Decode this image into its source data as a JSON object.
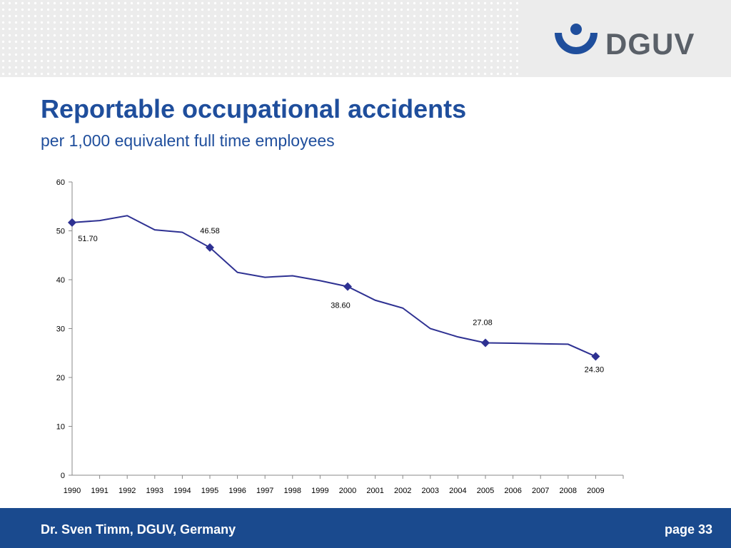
{
  "header": {
    "logo_text": "DGUV"
  },
  "slide": {
    "title": "Reportable occupational accidents",
    "subtitle": "per 1,000 equivalent full time employees"
  },
  "colors": {
    "brand_blue": "#1f4e9c",
    "line": "#2e3192",
    "footer": "#1a4a8e"
  },
  "chart_data": {
    "type": "line",
    "x": [
      "1990",
      "1991",
      "1992",
      "1993",
      "1994",
      "1995",
      "1996",
      "1997",
      "1998",
      "1999",
      "2000",
      "2001",
      "2002",
      "2003",
      "2004",
      "2005",
      "2006",
      "2007",
      "2008",
      "2009"
    ],
    "series": [
      {
        "values": [
          51.7,
          52.1,
          53.1,
          50.2,
          49.7,
          46.58,
          41.5,
          40.5,
          40.8,
          39.8,
          38.6,
          35.8,
          34.2,
          30.0,
          28.3,
          27.08,
          27.0,
          26.9,
          26.8,
          24.3
        ]
      }
    ],
    "markers": [
      "1990",
      "1995",
      "2000",
      "2005",
      "2009"
    ],
    "data_labels": [
      {
        "x": "1990",
        "text": "51.70"
      },
      {
        "x": "1995",
        "text": "46.58"
      },
      {
        "x": "2000",
        "text": "38.60"
      },
      {
        "x": "2005",
        "text": "27.08"
      },
      {
        "x": "2009",
        "text": "24.30"
      }
    ],
    "yticks": [
      "0",
      "10",
      "20",
      "30",
      "40",
      "50",
      "60"
    ],
    "ylim": [
      0,
      60
    ],
    "grid": false,
    "legend": "none"
  },
  "footer": {
    "author": "Dr. Sven Timm, DGUV, Germany",
    "page": "page 33"
  }
}
